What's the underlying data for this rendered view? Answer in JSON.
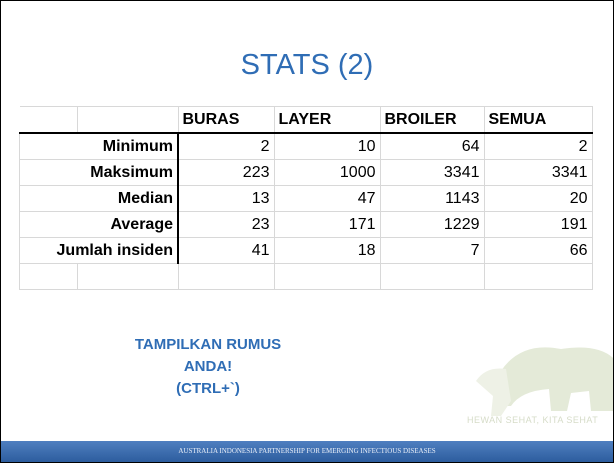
{
  "title": "STATS (2)",
  "table": {
    "columns": [
      "BURAS",
      "LAYER",
      "BROILER",
      "SEMUA"
    ],
    "rows": [
      {
        "label": "Minimum",
        "values": [
          2,
          10,
          64,
          2
        ]
      },
      {
        "label": "Maksimum",
        "values": [
          223,
          1000,
          3341,
          3341
        ]
      },
      {
        "label": "Median",
        "values": [
          13,
          47,
          1143,
          20
        ]
      },
      {
        "label": "Average",
        "values": [
          23,
          171,
          1229,
          191
        ]
      },
      {
        "label": "Jumlah insiden",
        "values": [
          41,
          18,
          7,
          66
        ]
      }
    ]
  },
  "note": [
    "TAMPILKAN RUMUS ANDA!",
    "(CTRL+`)"
  ],
  "watermark": "HEWAN SEHAT, KITA SEHAT",
  "footer": "AUSTRALIA INDONESIA PARTNERSHIP FOR EMERGING INFECTIOUS DISEASES"
}
